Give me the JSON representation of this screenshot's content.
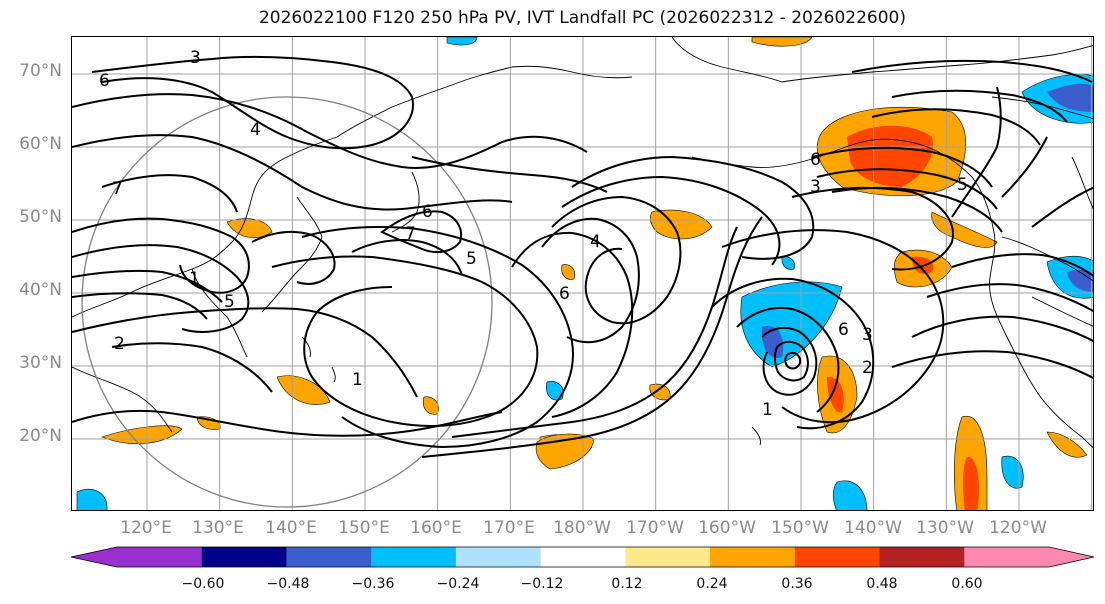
{
  "title": "2026022100 F120 250 hPa PV, IVT Landfall PC (2026022312 - 2026022600)",
  "lat_labels": [
    "70°N",
    "60°N",
    "50°N",
    "40°N",
    "30°N",
    "20°N"
  ],
  "lon_labels": [
    "120°E",
    "130°E",
    "140°E",
    "150°E",
    "160°E",
    "170°E",
    "180°W",
    "170°W",
    "160°W",
    "150°W",
    "140°W",
    "130°W",
    "120°W"
  ],
  "colorbar": {
    "ticks": [
      "−0.60",
      "−0.48",
      "−0.36",
      "−0.24",
      "−0.12",
      "0.12",
      "0.24",
      "0.36",
      "0.48",
      "0.60"
    ],
    "colors": [
      "#9b30d0",
      "#00008b",
      "#3a5fcd",
      "#00bfff",
      "#b0e2ff",
      "#ffffff",
      "#ffe98a",
      "#ffa500",
      "#ff4500",
      "#b22222",
      "#ff88b0"
    ]
  },
  "contour_labels": [
    "3",
    "6",
    "4",
    "7",
    "6",
    "7",
    "5",
    "4",
    "6",
    "1",
    "2",
    "1",
    "6",
    "3",
    "5",
    "1",
    "2",
    "6",
    "3",
    "5"
  ]
}
